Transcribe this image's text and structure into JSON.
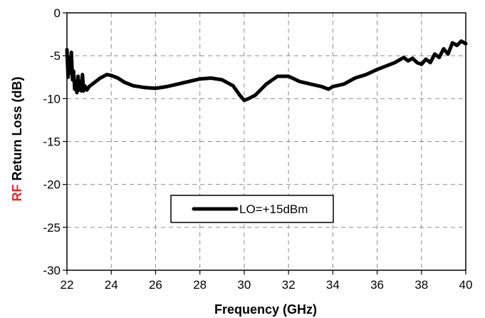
{
  "chart_data": {
    "type": "line",
    "title": "",
    "xlabel": "Frequency (GHz)",
    "ylabel_prefix": "RF",
    "ylabel_rest": " Return Loss (dB)",
    "ylabel_prefix_color": "#e8262d",
    "xlim": [
      22,
      40
    ],
    "ylim": [
      -30,
      0
    ],
    "xticks": [
      22,
      24,
      26,
      28,
      30,
      32,
      34,
      36,
      38,
      40
    ],
    "yticks": [
      0,
      -5,
      -10,
      -15,
      -20,
      -25,
      -30
    ],
    "grid": true,
    "legend_position": "lower-center",
    "series": [
      {
        "name": "LO=+15dBm",
        "color": "#000000",
        "x": [
          22.0,
          22.05,
          22.1,
          22.15,
          22.2,
          22.25,
          22.3,
          22.35,
          22.4,
          22.45,
          22.5,
          22.55,
          22.6,
          22.65,
          22.7,
          22.75,
          22.8,
          22.9,
          23.0,
          23.2,
          23.5,
          23.8,
          24.0,
          24.3,
          24.6,
          25.0,
          25.5,
          26.0,
          26.5,
          27.0,
          27.5,
          28.0,
          28.5,
          29.0,
          29.5,
          29.8,
          30.0,
          30.2,
          30.5,
          31.0,
          31.5,
          32.0,
          32.5,
          33.0,
          33.5,
          33.8,
          34.0,
          34.5,
          35.0,
          35.5,
          36.0,
          36.5,
          36.8,
          37.0,
          37.2,
          37.4,
          37.6,
          37.8,
          38.0,
          38.2,
          38.4,
          38.6,
          38.8,
          39.0,
          39.2,
          39.4,
          39.6,
          39.8,
          40.0
        ],
        "y": [
          -4.3,
          -7.5,
          -5.2,
          -7.0,
          -4.6,
          -7.8,
          -6.8,
          -8.9,
          -8.3,
          -9.3,
          -7.4,
          -9.0,
          -8.2,
          -9.1,
          -7.2,
          -9.1,
          -8.5,
          -9.0,
          -8.6,
          -8.2,
          -7.6,
          -7.2,
          -7.3,
          -7.6,
          -8.1,
          -8.5,
          -8.7,
          -8.8,
          -8.6,
          -8.3,
          -8.0,
          -7.7,
          -7.6,
          -7.8,
          -8.5,
          -9.6,
          -10.2,
          -10.0,
          -9.6,
          -8.3,
          -7.4,
          -7.4,
          -8.0,
          -8.3,
          -8.6,
          -8.9,
          -8.6,
          -8.3,
          -7.6,
          -7.2,
          -6.6,
          -6.1,
          -5.8,
          -5.5,
          -5.2,
          -5.6,
          -5.3,
          -5.8,
          -6.0,
          -5.4,
          -5.8,
          -4.8,
          -5.2,
          -4.2,
          -4.8,
          -3.5,
          -3.8,
          -3.3,
          -3.6
        ]
      }
    ]
  }
}
